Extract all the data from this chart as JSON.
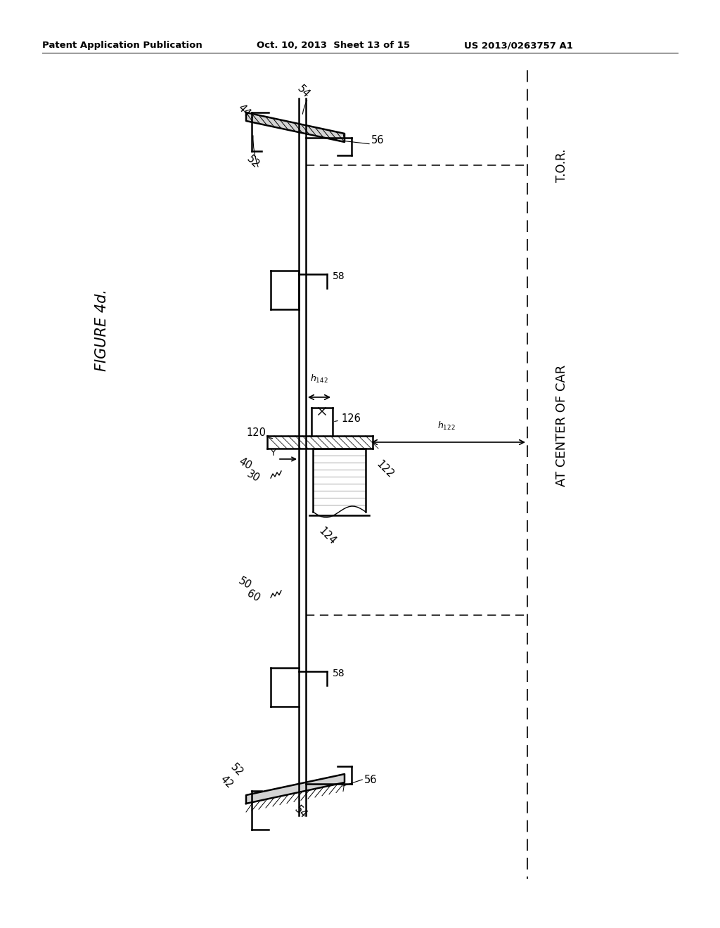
{
  "bg_color": "#ffffff",
  "header_left": "Patent Application Publication",
  "header_mid": "Oct. 10, 2013  Sheet 13 of 15",
  "header_right": "US 2013/0263757 A1",
  "figure_label": "FIGURE 4d.",
  "tor_label": "T.O.R.",
  "center_label": "AT CENTER OF CAR"
}
